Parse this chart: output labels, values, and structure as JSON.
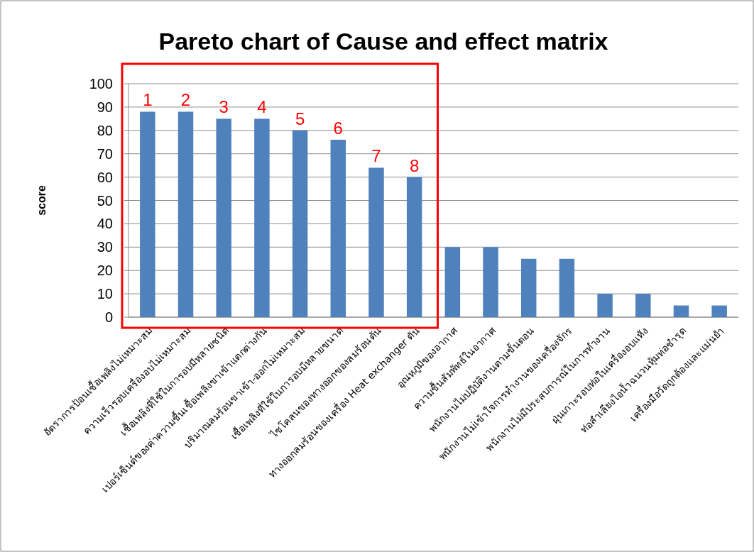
{
  "chart_data": {
    "type": "bar",
    "title": "Pareto chart of Cause and effect matrix",
    "ylabel": "score",
    "categories": [
      "อัตราการป้อนเชื้อเพลิงไม่เหมาะสม",
      "ความเร็วรอบเครื่องอบไม่เหมาะสม",
      "เชื้อเพลิงที่ใช้ในการอบมีหลายชนิด",
      "เปอร์เซ็นต์ของค่าความชื้นเชื้อเพลิงขาเข้าแตกต่างกัน",
      "ปริมาณลมร้อนขาเข้า-ออกไม่เหมาะสม",
      "เชื้อเพลิงที่ใช้ในการอบมีหลายขนาด",
      "ไซโคลนของทางออกของลมร้อนตัน",
      "ทางออกลมร้อนของเครื่อง Heat exchanger ตัน",
      "อุณหภูมิของอากาศ",
      "ความชื้นสัมพัทธ์ในอากาศ",
      "พนักงานไม่ปฏิบัติงานตามขั้นตอน",
      "พนักงานไม่เข้าใจการทำงานของเครื่องจักร",
      "พนักงานไม่มีประสบการณ์ในการทำงาน",
      "ฝุ่นเกาะรอบท่อในเครื่องอบแห้ง",
      "ท่อลำเลียงไอน้ำฉนวนหุ้มท่อชำรุด",
      "เครื่องมือวัดถูกต้องและแม่นยำ"
    ],
    "values": [
      88,
      88,
      85,
      85,
      80,
      76,
      64,
      60,
      30,
      30,
      25,
      25,
      10,
      10,
      5,
      5
    ],
    "color": "#4f81bd",
    "ylim": [
      0,
      100
    ],
    "yticks": [
      0,
      10,
      20,
      30,
      40,
      50,
      60,
      70,
      80,
      90,
      100
    ],
    "grid": "y",
    "annotations": [
      {
        "text": "1",
        "x": "อัตราการป้อนเชื้อเพลิงไม่เหมาะสม",
        "y": 88
      },
      {
        "text": "2",
        "x": "ความเร็วรอบเครื่องอบไม่เหมาะสม",
        "y": 88
      },
      {
        "text": "3",
        "x": "เชื้อเพลิงที่ใช้ในการอบมีหลายชนิด",
        "y": 85
      },
      {
        "text": "4",
        "x": "เปอร์เซ็นต์ของค่าความชื้นเชื้อเพลิงขาเข้าแตกต่างกัน",
        "y": 85
      },
      {
        "text": "5",
        "x": "ปริมาณลมร้อนขาเข้า-ออกไม่เหมาะสม",
        "y": 80
      },
      {
        "text": "6",
        "x": "เชื้อเพลิงที่ใช้ในการอบมีหลายขนาด",
        "y": 76
      },
      {
        "text": "7",
        "x": "ไซโคลนของทางออกของลมร้อนตัน",
        "y": 64
      },
      {
        "text": "8",
        "x": "ทางออกลมร้อนของเครื่อง Heat exchanger ตัน",
        "y": 60
      }
    ]
  }
}
